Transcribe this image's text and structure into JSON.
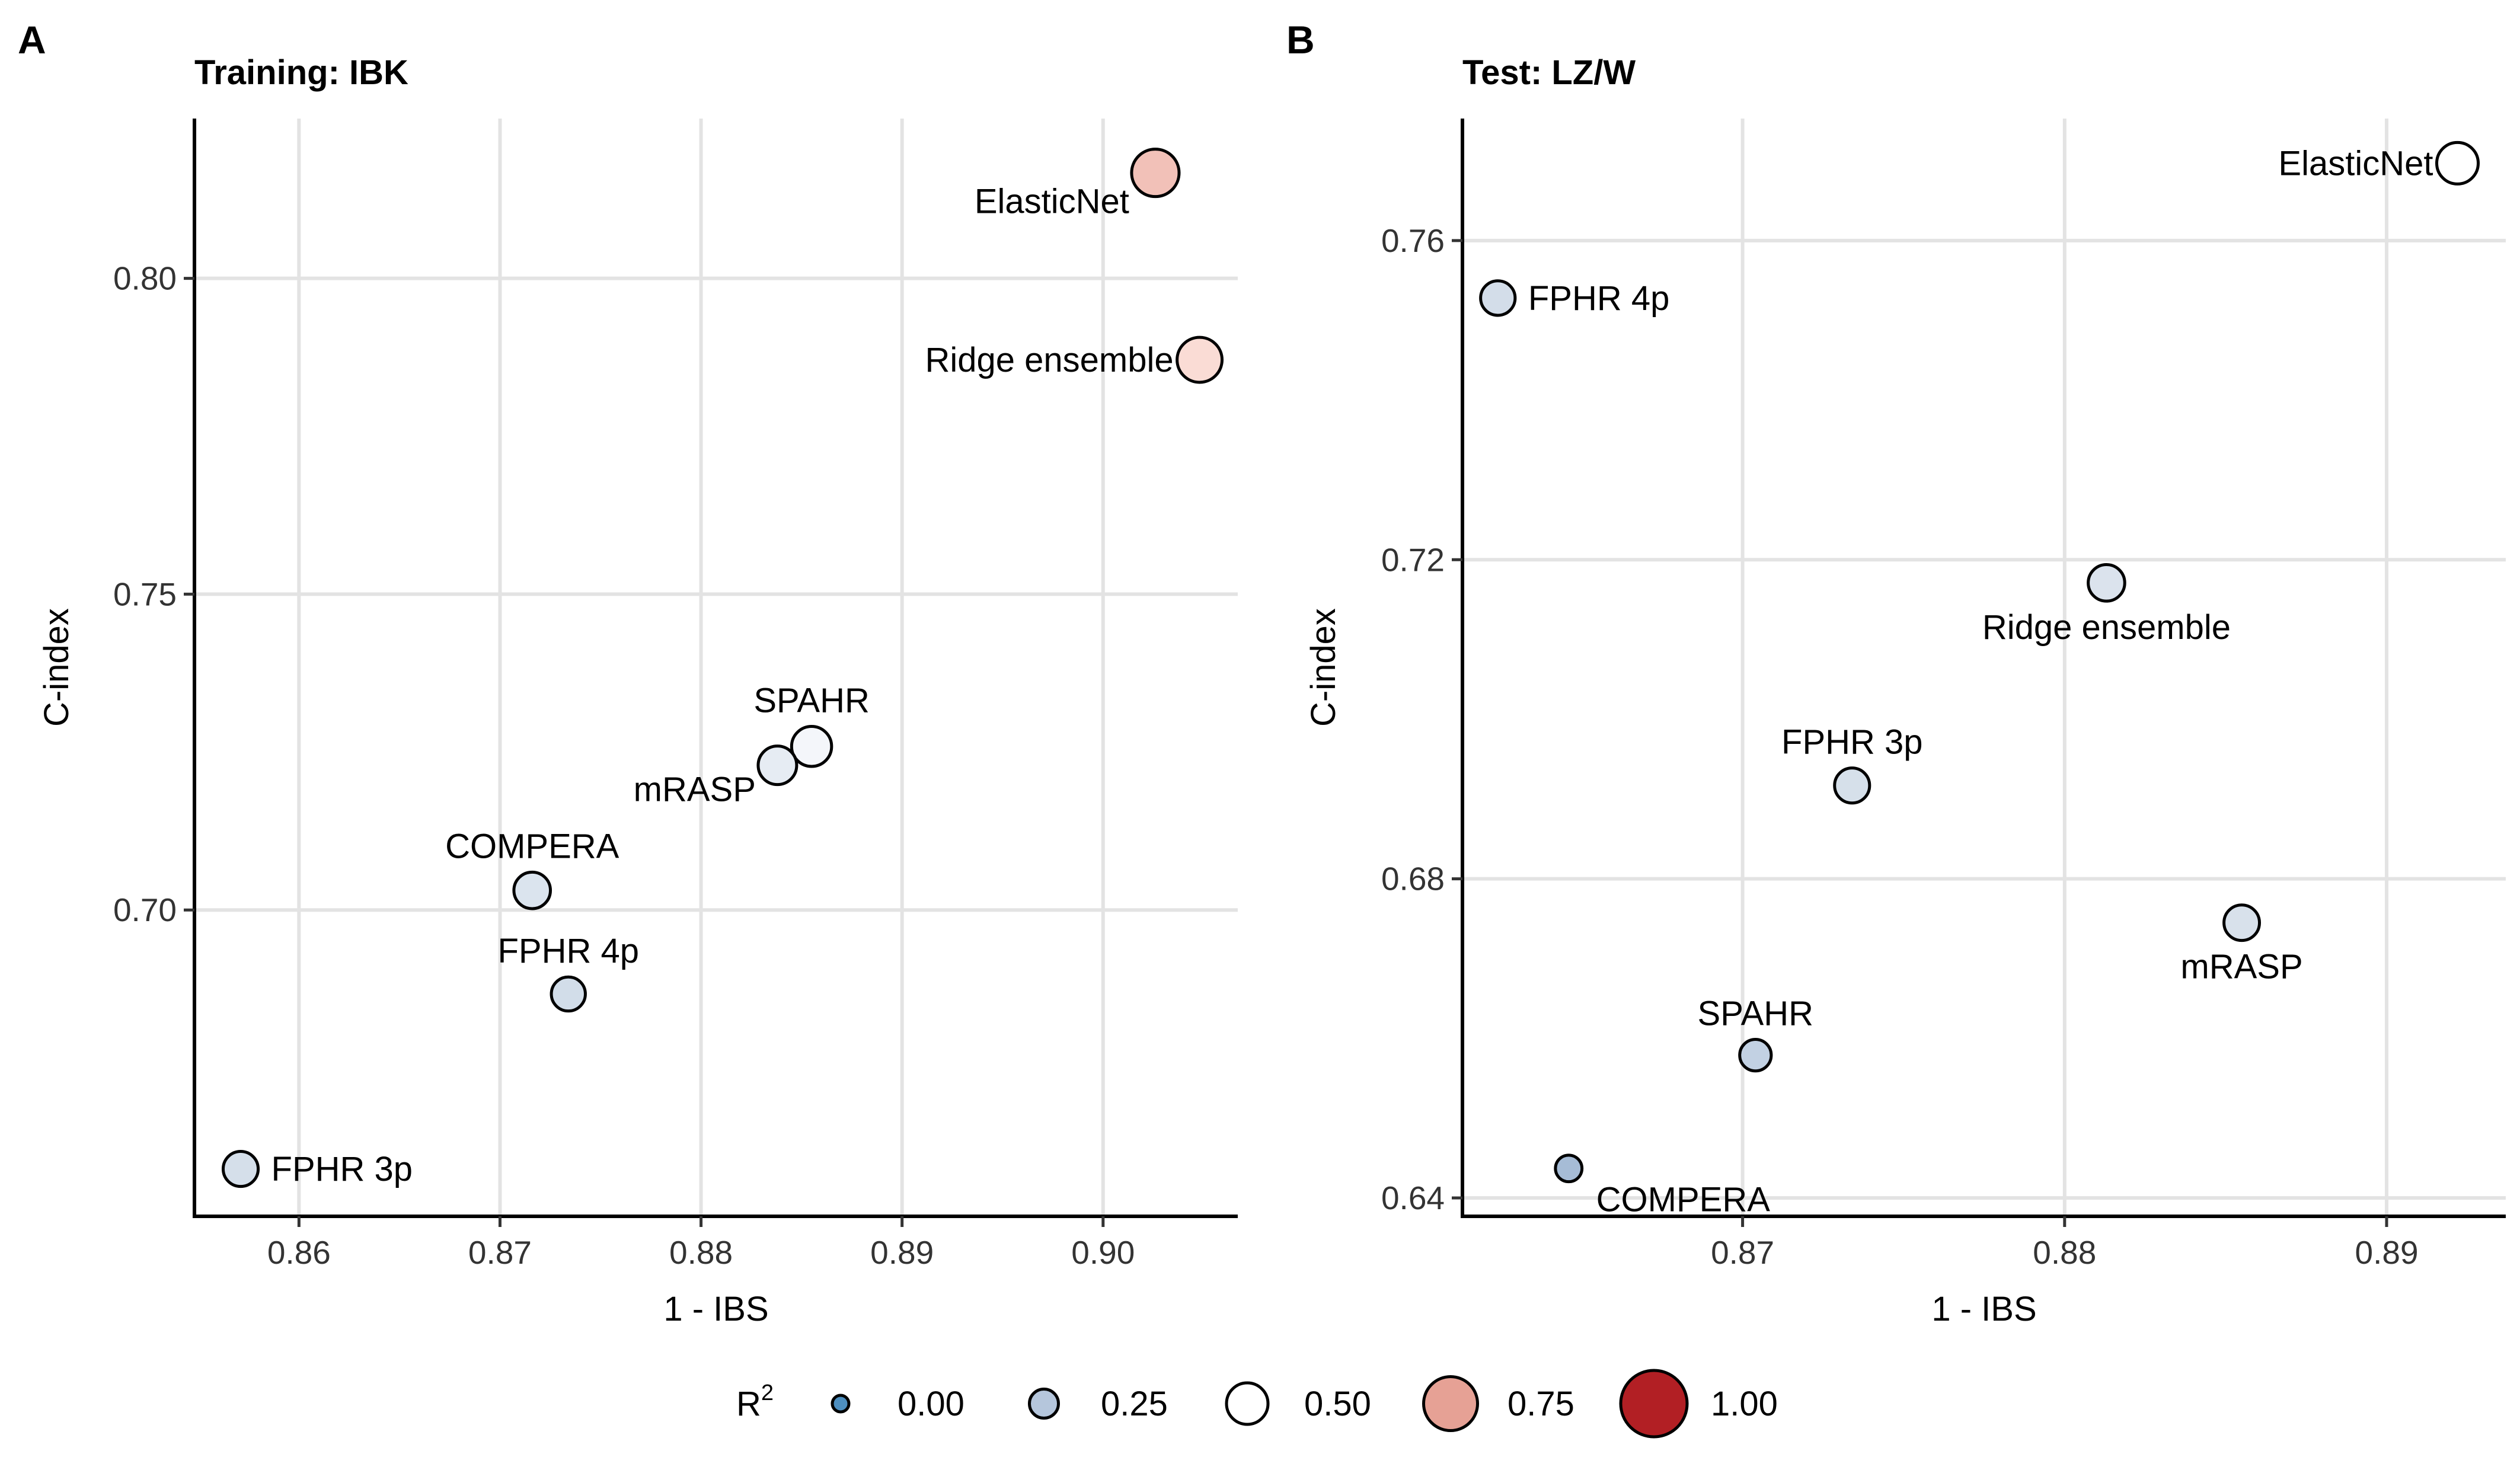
{
  "legend": {
    "title": "R",
    "title_superscript": "2",
    "entries": [
      {
        "value": 0.0,
        "label": "0.00",
        "color": "#4d8fc0"
      },
      {
        "value": 0.25,
        "label": "0.25",
        "color": "#b5c6dc"
      },
      {
        "value": 0.5,
        "label": "0.50",
        "color": "#ffffff"
      },
      {
        "value": 0.75,
        "label": "0.75",
        "color": "#e6a195"
      },
      {
        "value": 1.0,
        "label": "1.00",
        "color": "#b21f24"
      }
    ]
  },
  "chart_data": [
    {
      "type": "scatter",
      "panel": "A",
      "title": "Training: IBK",
      "xlabel": "1 - IBS",
      "ylabel": "C-index",
      "xlim": [
        0.8548,
        0.9067
      ],
      "ylim": [
        0.6515,
        0.8253
      ],
      "xticks": [
        0.86,
        0.87,
        0.88,
        0.89,
        0.9
      ],
      "xtick_labels": [
        "0.86",
        "0.87",
        "0.88",
        "0.89",
        "0.90"
      ],
      "yticks": [
        0.7,
        0.75,
        0.8
      ],
      "ytick_labels": [
        "0.70",
        "0.75",
        "0.80"
      ],
      "grid": true,
      "points": [
        {
          "label": "ElasticNet",
          "x": 0.9026,
          "y": 0.8167,
          "r2": 0.62,
          "color": "#f2c1b8",
          "label_pos": "below-left"
        },
        {
          "label": "Ridge ensemble",
          "x": 0.9048,
          "y": 0.7871,
          "r2": 0.57,
          "color": "#fadcd5",
          "label_pos": "left"
        },
        {
          "label": "SPAHR",
          "x": 0.8855,
          "y": 0.7259,
          "r2": 0.47,
          "color": "#f4f6fa",
          "label_pos": "above"
        },
        {
          "label": "mRASP",
          "x": 0.8838,
          "y": 0.7229,
          "r2": 0.44,
          "color": "#e6ecf3",
          "label_pos": "below-left"
        },
        {
          "label": "COMPERA",
          "x": 0.8716,
          "y": 0.7031,
          "r2": 0.4,
          "color": "#dbe4ee",
          "label_pos": "above"
        },
        {
          "label": "FPHR 4p",
          "x": 0.8734,
          "y": 0.6867,
          "r2": 0.35,
          "color": "#d2dde9",
          "label_pos": "above"
        },
        {
          "label": "FPHR 3p",
          "x": 0.8571,
          "y": 0.659,
          "r2": 0.37,
          "color": "#d5dfea",
          "label_pos": "right"
        }
      ]
    },
    {
      "type": "scatter",
      "panel": "B",
      "title": "Test: LZ/W",
      "xlabel": "1 - IBS",
      "ylabel": "C-index",
      "xlim": [
        0.8613,
        0.8937
      ],
      "ylim": [
        0.6377,
        0.7753
      ],
      "xticks": [
        0.87,
        0.88,
        0.89
      ],
      "xtick_labels": [
        "0.87",
        "0.88",
        "0.89"
      ],
      "yticks": [
        0.64,
        0.68,
        0.72,
        0.76
      ],
      "ytick_labels": [
        "0.64",
        "0.68",
        "0.72",
        "0.76"
      ],
      "grid": true,
      "points": [
        {
          "label": "ElasticNet",
          "x": 0.8922,
          "y": 0.7697,
          "r2": 0.5,
          "color": "#ffffff",
          "label_pos": "left"
        },
        {
          "label": "FPHR 4p",
          "x": 0.8624,
          "y": 0.7528,
          "r2": 0.36,
          "color": "#d3dde9",
          "label_pos": "right"
        },
        {
          "label": "Ridge ensemble",
          "x": 0.8813,
          "y": 0.7171,
          "r2": 0.4,
          "color": "#dbe3ed",
          "label_pos": "below"
        },
        {
          "label": "FPHR 3p",
          "x": 0.8734,
          "y": 0.6917,
          "r2": 0.37,
          "color": "#d6e0ea",
          "label_pos": "above"
        },
        {
          "label": "mRASP",
          "x": 0.8855,
          "y": 0.6745,
          "r2": 0.38,
          "color": "#d8e1eb",
          "label_pos": "below"
        },
        {
          "label": "SPAHR",
          "x": 0.8704,
          "y": 0.6579,
          "r2": 0.3,
          "color": "#c2d1e3",
          "label_pos": "above"
        },
        {
          "label": "COMPERA",
          "x": 0.8646,
          "y": 0.6437,
          "r2": 0.2,
          "color": "#a6bcd6",
          "label_pos": "below-right"
        }
      ]
    }
  ]
}
